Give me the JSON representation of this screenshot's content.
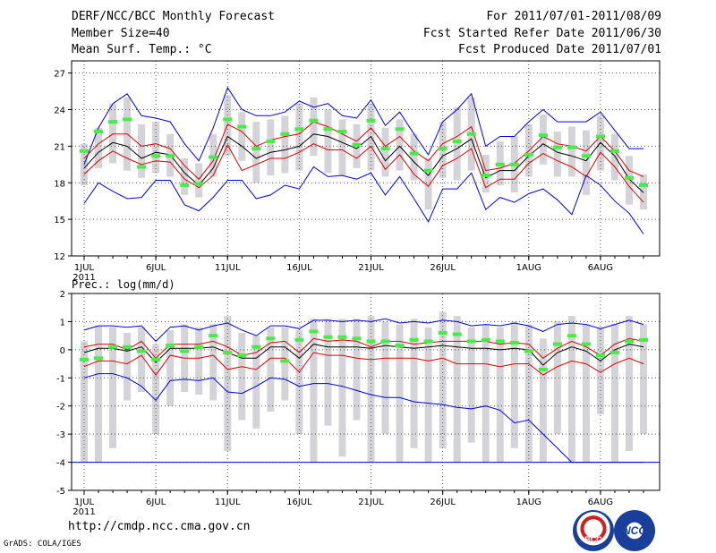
{
  "header": {
    "title": "DERF/NCC/BCC Monthly Forecast",
    "member_size": "Member Size=40",
    "variable": "Mean Surf. Temp.: °C",
    "forecast_period": "For 2011/07/01-2011/08/09",
    "started_refer_date": "Fcst Started Refer Date 2011/06/30",
    "produced_date": "Fcst Produced Date 2011/07/01"
  },
  "footer": {
    "url": "http://cmdp.ncc.cma.gov.cn",
    "credit": "GrADS: COLA/IGES",
    "logo_left": "BCC",
    "logo_right": "NCC"
  },
  "colors": {
    "max_min": "#0000dd",
    "ensemble_mean": "#000000",
    "percentile": "#dd0000",
    "box": "#d4d4d8",
    "obs": "#44ee44"
  },
  "chart_data": [
    {
      "type": "line",
      "title": "Mean Surf. Temp.: °C",
      "x_tick_labels": [
        "1JUL",
        "6JUL",
        "11JUL",
        "16JUL",
        "21JUL",
        "26JUL",
        "1AUG",
        "6AUG"
      ],
      "x_tick_days": [
        1,
        6,
        11,
        16,
        21,
        26,
        32,
        37
      ],
      "year_label": "2011",
      "ylim": [
        12,
        28
      ],
      "y_ticks": [
        12,
        15,
        18,
        21,
        24,
        27
      ],
      "days": [
        1,
        2,
        3,
        4,
        5,
        6,
        7,
        8,
        9,
        10,
        11,
        12,
        13,
        14,
        15,
        16,
        17,
        18,
        19,
        20,
        21,
        22,
        23,
        24,
        25,
        26,
        27,
        28,
        29,
        30,
        31,
        32,
        33,
        34,
        35,
        36,
        37,
        38,
        39,
        40
      ],
      "series": [
        {
          "name": "max",
          "values": [
            19.5,
            22.5,
            24.5,
            25.3,
            23.5,
            23.3,
            23.0,
            21.2,
            19.8,
            22.5,
            25.8,
            24.0,
            23.5,
            23.5,
            23.8,
            24.7,
            24.2,
            24.5,
            23.5,
            23.3,
            24.8,
            22.7,
            23.8,
            22.0,
            20.3,
            23.0,
            24.0,
            25.3,
            21.0,
            21.8,
            21.8,
            23.0,
            24.0,
            23.0,
            23.0,
            23.0,
            23.8,
            22.3,
            20.8,
            20.8
          ]
        },
        {
          "name": "upper_pct",
          "values": [
            20.0,
            21.2,
            22.0,
            22.0,
            21.0,
            21.2,
            20.8,
            19.4,
            18.3,
            19.8,
            22.8,
            22.2,
            21.0,
            21.5,
            21.8,
            22.0,
            23.0,
            22.6,
            22.0,
            21.4,
            22.5,
            21.0,
            21.8,
            20.6,
            19.8,
            21.2,
            21.8,
            22.6,
            19.0,
            19.2,
            19.6,
            20.6,
            21.8,
            21.2,
            21.0,
            20.6,
            21.8,
            20.6,
            19.0,
            18.5
          ]
        },
        {
          "name": "mean",
          "values": [
            19.2,
            20.5,
            21.3,
            21.0,
            20.0,
            20.5,
            20.3,
            18.8,
            17.8,
            19.2,
            21.8,
            21.0,
            20.0,
            20.5,
            20.7,
            21.0,
            22.0,
            21.8,
            21.3,
            20.8,
            21.8,
            19.8,
            21.0,
            19.7,
            18.6,
            20.2,
            20.8,
            21.6,
            18.4,
            19.0,
            19.0,
            20.2,
            21.2,
            20.5,
            20.2,
            19.8,
            21.3,
            20.2,
            18.3,
            17.2
          ]
        },
        {
          "name": "lower_pct",
          "values": [
            18.7,
            19.8,
            20.6,
            20.0,
            19.5,
            19.8,
            19.7,
            18.3,
            17.6,
            18.6,
            21.1,
            19.0,
            19.5,
            20.0,
            20.0,
            20.5,
            21.2,
            20.7,
            20.7,
            20.0,
            21.0,
            19.1,
            20.3,
            18.7,
            17.7,
            19.4,
            20.0,
            20.8,
            17.6,
            18.3,
            18.3,
            19.6,
            20.4,
            19.8,
            19.3,
            18.5,
            20.5,
            19.3,
            17.7,
            16.4
          ]
        },
        {
          "name": "min",
          "values": [
            16.3,
            18.0,
            17.3,
            16.7,
            16.8,
            18.2,
            18.2,
            16.2,
            15.7,
            16.8,
            18.2,
            18.2,
            16.7,
            17.0,
            17.8,
            17.5,
            19.3,
            18.5,
            18.6,
            18.3,
            18.8,
            17.0,
            18.5,
            16.7,
            14.8,
            17.5,
            17.5,
            18.8,
            15.8,
            16.8,
            16.4,
            17.1,
            17.5,
            16.6,
            15.4,
            18.6,
            17.8,
            16.5,
            15.5,
            13.8
          ]
        },
        {
          "name": "obs",
          "values": [
            20.6,
            22.2,
            23.0,
            23.2,
            19.3,
            20.2,
            20.2,
            17.8,
            17.9,
            20.1,
            23.2,
            22.6,
            20.8,
            21.4,
            22.0,
            22.4,
            23.1,
            22.4,
            22.2,
            21.1,
            23.1,
            20.8,
            22.4,
            20.4,
            19.0,
            20.8,
            21.4,
            22.0,
            18.6,
            19.5,
            19.5,
            20.3,
            21.9,
            20.9,
            20.9,
            20.2,
            21.8,
            20.6,
            18.4,
            17.8
          ]
        }
      ],
      "box_low": [
        17.8,
        19.2,
        19.6,
        19.0,
        18.4,
        18.8,
        18.5,
        17.0,
        16.8,
        18.5,
        20.2,
        19.8,
        18.0,
        18.6,
        18.8,
        19.0,
        20.2,
        18.8,
        18.6,
        19.2,
        19.0,
        18.5,
        19.0,
        18.2,
        15.8,
        18.4,
        18.2,
        19.0,
        17.2,
        17.8,
        17.2,
        18.5,
        19.5,
        18.5,
        18.5,
        17.0,
        19.0,
        18.2,
        16.2,
        15.8
      ],
      "box_high": [
        21.2,
        22.5,
        24.5,
        25.0,
        22.8,
        23.0,
        22.0,
        20.0,
        19.6,
        22.0,
        25.2,
        23.8,
        23.0,
        23.2,
        23.5,
        24.5,
        25.0,
        24.0,
        23.2,
        22.8,
        24.5,
        22.5,
        23.2,
        22.0,
        20.0,
        23.0,
        24.2,
        25.0,
        20.3,
        21.4,
        21.8,
        22.8,
        23.6,
        22.2,
        22.6,
        22.3,
        23.5,
        22.0,
        20.2,
        18.7
      ]
    },
    {
      "type": "line",
      "title": "Prec.: log(mm/d)",
      "x_tick_labels": [
        "1JUL",
        "6JUL",
        "11JUL",
        "16JUL",
        "21JUL",
        "26JUL",
        "1AUG",
        "6AUG"
      ],
      "x_tick_days": [
        1,
        6,
        11,
        16,
        21,
        26,
        32,
        37
      ],
      "year_label": "2011",
      "ylim": [
        -5,
        2
      ],
      "y_ticks": [
        -5,
        -4,
        -3,
        -2,
        -1,
        0,
        1,
        2
      ],
      "days": [
        1,
        2,
        3,
        4,
        5,
        6,
        7,
        8,
        9,
        10,
        11,
        12,
        13,
        14,
        15,
        16,
        17,
        18,
        19,
        20,
        21,
        22,
        23,
        24,
        25,
        26,
        27,
        28,
        29,
        30,
        31,
        32,
        33,
        34,
        35,
        36,
        37,
        38,
        39,
        40
      ],
      "series": [
        {
          "name": "max",
          "values": [
            0.7,
            0.85,
            0.85,
            0.8,
            0.85,
            0.3,
            0.8,
            0.85,
            0.7,
            0.85,
            0.95,
            0.7,
            0.5,
            0.85,
            0.85,
            0.75,
            1.05,
            1.05,
            1.0,
            1.05,
            1.0,
            1.1,
            0.95,
            1.0,
            0.95,
            1.05,
            1.0,
            0.85,
            0.9,
            0.85,
            0.95,
            0.85,
            0.65,
            0.9,
            0.95,
            0.9,
            0.75,
            0.9,
            1.05,
            0.9
          ]
        },
        {
          "name": "upper_pct",
          "values": [
            0.1,
            0.2,
            0.2,
            0.0,
            0.3,
            -0.3,
            0.2,
            0.2,
            0.2,
            0.3,
            0.1,
            -0.2,
            -0.1,
            0.25,
            0.3,
            -0.1,
            0.4,
            0.3,
            0.35,
            0.3,
            0.1,
            0.3,
            0.3,
            0.2,
            0.25,
            0.3,
            0.3,
            0.3,
            0.3,
            0.2,
            0.25,
            0.2,
            -0.3,
            0.05,
            0.3,
            0.1,
            -0.2,
            0.2,
            0.4,
            0.3
          ]
        },
        {
          "name": "mean",
          "values": [
            -0.1,
            0.05,
            0.05,
            -0.05,
            0.1,
            -0.45,
            0.05,
            0.05,
            0.05,
            0.1,
            -0.1,
            -0.3,
            -0.3,
            0.1,
            0.1,
            -0.3,
            0.2,
            0.1,
            0.1,
            0.1,
            0.05,
            0.15,
            0.1,
            0.05,
            0.1,
            0.15,
            0.1,
            0.05,
            0.05,
            0.0,
            0.05,
            0.0,
            -0.55,
            -0.1,
            0.1,
            -0.05,
            -0.4,
            0.0,
            0.2,
            0.1
          ]
        },
        {
          "name": "lower_pct",
          "values": [
            -0.6,
            -0.4,
            -0.4,
            -0.5,
            -0.2,
            -0.9,
            -0.2,
            -0.3,
            -0.3,
            -0.2,
            -0.7,
            -0.6,
            -0.7,
            -0.3,
            -0.3,
            -0.8,
            -0.1,
            -0.2,
            -0.2,
            -0.3,
            -0.35,
            -0.3,
            -0.3,
            -0.3,
            -0.4,
            -0.3,
            -0.5,
            -0.5,
            -0.5,
            -0.6,
            -0.5,
            -0.5,
            -0.9,
            -0.6,
            -0.4,
            -0.5,
            -0.8,
            -0.5,
            -0.3,
            -0.5
          ]
        },
        {
          "name": "min",
          "values": [
            -1.0,
            -0.85,
            -0.85,
            -1.0,
            -1.3,
            -1.8,
            -1.1,
            -1.05,
            -1.1,
            -1.0,
            -1.5,
            -1.55,
            -1.3,
            -1.0,
            -1.05,
            -1.3,
            -1.2,
            -1.2,
            -1.3,
            -1.45,
            -1.6,
            -1.7,
            -1.7,
            -1.85,
            -1.9,
            -1.95,
            -2.05,
            -2.1,
            -2.0,
            -2.15,
            -2.6,
            -2.5,
            -3.0,
            -3.5,
            -4.0,
            -4.0,
            -4.0,
            -4.0,
            -4.0,
            -4.0
          ]
        },
        {
          "name": "obs",
          "values": [
            -0.35,
            -0.3,
            0.1,
            0.1,
            -0.05,
            -0.35,
            0.15,
            -0.05,
            0.1,
            0.5,
            -0.1,
            -0.2,
            0.1,
            0.4,
            -0.4,
            0.35,
            0.65,
            0.45,
            0.45,
            0.4,
            0.3,
            0.3,
            0.15,
            0.35,
            0.3,
            0.6,
            0.55,
            0.3,
            0.35,
            0.3,
            0.25,
            -0.05,
            -0.7,
            0.2,
            0.5,
            0.2,
            -0.2,
            -0.1,
            0.3,
            0.35
          ]
        }
      ],
      "box_low": [
        -4.0,
        -4.0,
        -3.5,
        -1.8,
        -1.5,
        -3.0,
        -2.0,
        -1.5,
        -1.6,
        -1.8,
        -3.6,
        -2.5,
        -2.8,
        -2.2,
        -1.8,
        -3.0,
        -4.0,
        -2.7,
        -3.8,
        -2.5,
        -4.0,
        -3.0,
        -4.0,
        -3.5,
        -4.0,
        -3.5,
        -4.0,
        -3.3,
        -4.0,
        -4.0,
        -3.5,
        -4.0,
        -4.0,
        -3.0,
        -4.0,
        -4.0,
        -2.3,
        -4.0,
        -3.6,
        -3.0
      ],
      "box_high": [
        0.3,
        0.85,
        0.8,
        0.6,
        0.8,
        0.2,
        0.7,
        0.9,
        0.8,
        0.9,
        1.2,
        0.6,
        0.5,
        0.8,
        0.8,
        0.7,
        1.1,
        1.1,
        1.1,
        1.1,
        1.2,
        1.0,
        0.9,
        1.1,
        0.8,
        1.35,
        1.2,
        0.8,
        0.9,
        0.8,
        1.0,
        0.9,
        0.4,
        1.0,
        1.2,
        0.9,
        0.8,
        0.9,
        1.2,
        0.9
      ]
    }
  ]
}
